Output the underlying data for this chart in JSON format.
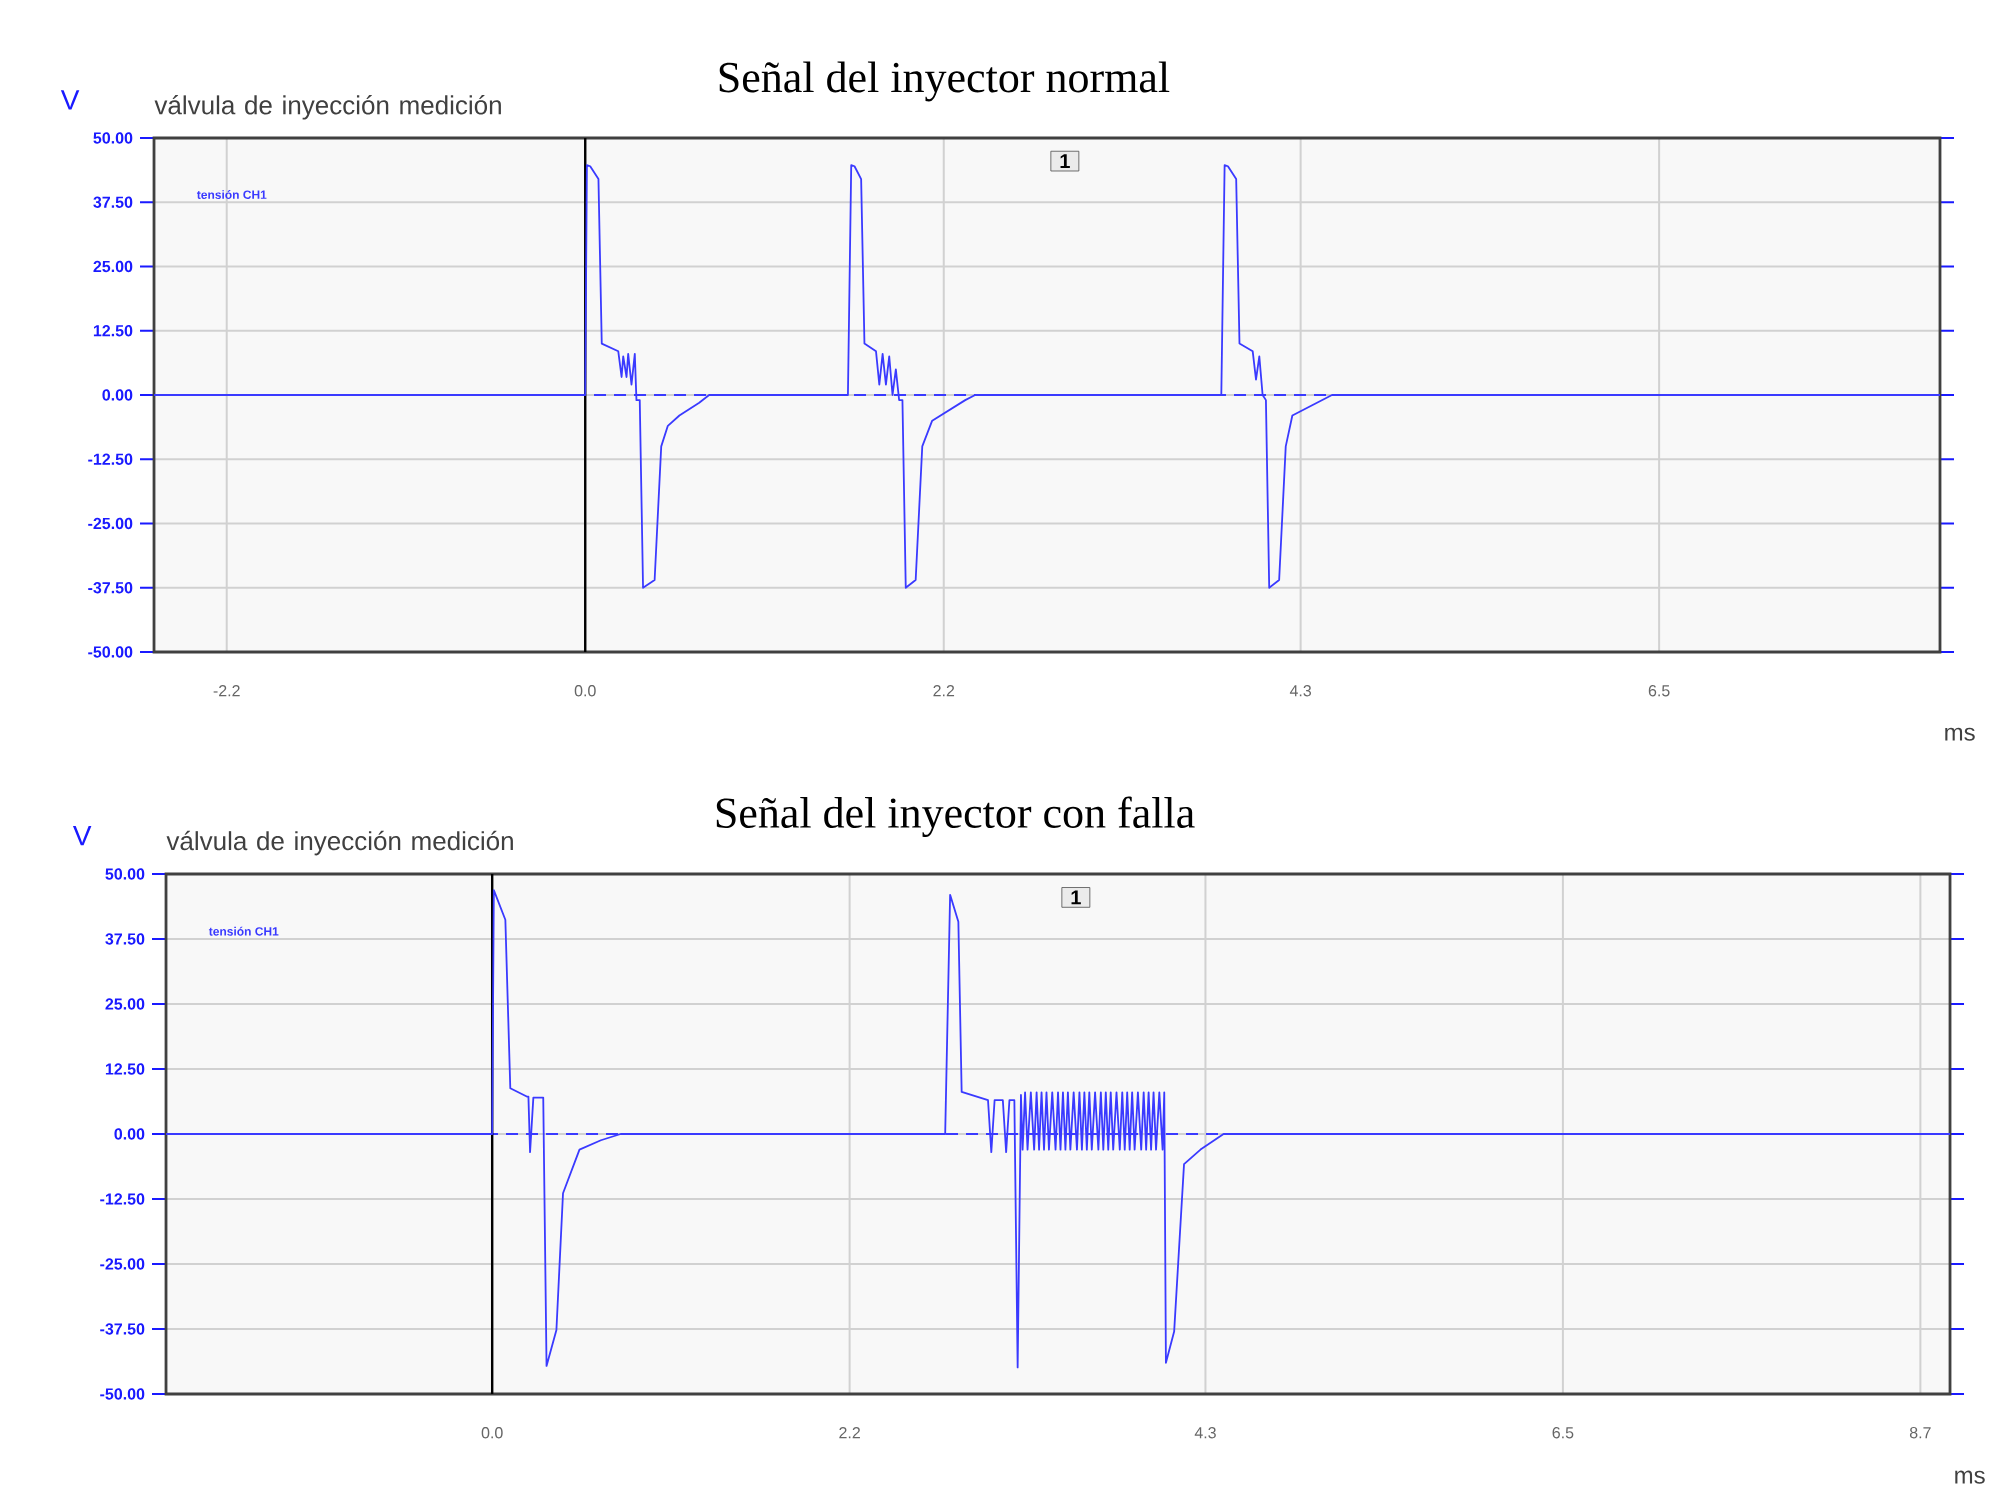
{
  "chart_data": [
    {
      "type": "line",
      "title": "Señal del inyector normal",
      "subtitle": "válvula de inyección medición",
      "xlabel": "ms",
      "ylabel": "V",
      "series": [
        {
          "name": "tensión CH1",
          "color": "#3a3aff",
          "x": [
            -2.61,
            0.0,
            0.01,
            0.03,
            0.08,
            0.1,
            0.2,
            0.22,
            0.23,
            0.25,
            0.26,
            0.28,
            0.3,
            0.31,
            0.33,
            0.35,
            0.42,
            0.46,
            0.5,
            0.57,
            0.69,
            0.75,
            1.59,
            1.61,
            1.63,
            1.67,
            1.69,
            1.76,
            1.78,
            1.8,
            1.82,
            1.84,
            1.86,
            1.88,
            1.9,
            1.92,
            1.94,
            2.0,
            2.04,
            2.1,
            2.2,
            2.3,
            2.36,
            3.85,
            3.87,
            3.89,
            3.94,
            3.96,
            4.04,
            4.06,
            4.08,
            4.1,
            4.12,
            4.14,
            4.2,
            4.24,
            4.28,
            4.4,
            4.52,
            8.2
          ],
          "values": [
            0,
            0,
            44.7,
            44.5,
            42,
            10,
            8.5,
            3.5,
            7.5,
            3.5,
            8,
            2,
            8,
            -1,
            -1,
            -37.5,
            -36,
            -10,
            -6,
            -4,
            -1.5,
            0,
            0,
            44.7,
            44.5,
            42,
            10,
            8.5,
            2,
            8,
            2,
            7.5,
            0,
            5,
            -1,
            -1,
            -37.5,
            -36,
            -10,
            -5,
            -3,
            -1,
            0,
            0,
            44.7,
            44.5,
            42,
            10,
            8.5,
            3,
            7.5,
            0,
            -1,
            -37.5,
            -36,
            -10,
            -4,
            -2,
            0,
            0
          ]
        }
      ],
      "xlim": [
        -2.61,
        8.2
      ],
      "ylim": [
        -50,
        50
      ],
      "xticks": [
        {
          "value": -2.17,
          "label": "-2.2"
        },
        {
          "value": 0,
          "label": "0.0"
        },
        {
          "value": 2.17,
          "label": "2.2"
        },
        {
          "value": 4.33,
          "label": "4.3"
        },
        {
          "value": 6.5,
          "label": "6.5"
        }
      ],
      "yticks": [
        {
          "value": 50,
          "label": "50.00"
        },
        {
          "value": 37.5,
          "label": "37.50"
        },
        {
          "value": 25,
          "label": "25.00"
        },
        {
          "value": 12.5,
          "label": "12.50"
        },
        {
          "value": 0,
          "label": "0.00"
        },
        {
          "value": -12.5,
          "label": "-12.50"
        },
        {
          "value": -25,
          "label": "-25.00"
        },
        {
          "value": -37.5,
          "label": "-37.50"
        },
        {
          "value": -50,
          "label": "-50.00"
        }
      ],
      "grid": true,
      "marker": "none",
      "line_style": "solid",
      "ref_lines": [
        {
          "axis": "y",
          "value": 0,
          "color": "#3a3aff",
          "line_style": "dashed"
        },
        {
          "axis": "x",
          "value": 0,
          "color": "#000000",
          "line_style": "solid"
        }
      ],
      "annotations": [
        "1"
      ]
    },
    {
      "type": "line",
      "title": "Señal del inyector con falla",
      "subtitle": "válvula de inyección medición",
      "xlabel": "ms",
      "ylabel": "V",
      "series": [
        {
          "name": "tensión CH1",
          "color": "#3a3aff",
          "x": [
            -1.98,
            0.0,
            0.01,
            0.08,
            0.11,
            0.21,
            0.22,
            0.23,
            0.25,
            0.31,
            0.33,
            0.39,
            0.43,
            0.53,
            0.66,
            0.78,
            2.75,
            2.78,
            2.83,
            2.85,
            3.01,
            3.03,
            3.05,
            3.1,
            3.12,
            3.14,
            3.17,
            3.19,
            3.21,
            3.22,
            3.235,
            3.25,
            3.27,
            3.29,
            3.305,
            3.32,
            3.335,
            3.35,
            3.365,
            3.38,
            3.4,
            3.42,
            3.435,
            3.45,
            3.465,
            3.48,
            3.495,
            3.51,
            3.53,
            3.55,
            3.565,
            3.58,
            3.595,
            3.61,
            3.625,
            3.64,
            3.66,
            3.68,
            3.695,
            3.71,
            3.725,
            3.74,
            3.755,
            3.77,
            3.79,
            3.81,
            3.825,
            3.84,
            3.855,
            3.87,
            3.885,
            3.9,
            3.92,
            3.94,
            3.955,
            3.97,
            3.985,
            4.0,
            4.015,
            4.03,
            4.05,
            4.07,
            4.08,
            4.09,
            4.14,
            4.2,
            4.3,
            4.44,
            8.85
          ],
          "values": [
            0,
            0,
            46.9,
            41.2,
            8.8,
            7.2,
            7.2,
            -3.5,
            7,
            7,
            -44.6,
            -37.7,
            -11.4,
            -3,
            -1.2,
            0,
            0,
            46,
            40.8,
            8.1,
            6.5,
            -3.5,
            6.5,
            6.5,
            -3.5,
            6.5,
            6.5,
            -44.9,
            7.5,
            -3,
            8,
            -3,
            8,
            -3,
            8,
            -3,
            8,
            -3,
            8,
            -3,
            8,
            -3,
            8,
            -3,
            8,
            -3,
            8,
            -3,
            8,
            -3,
            8,
            -3,
            8,
            -3,
            8,
            -3,
            8,
            -3,
            8,
            -3,
            8,
            -3,
            8,
            -3,
            8,
            -3,
            8,
            -3,
            8,
            -3,
            8,
            -3,
            8,
            -3,
            8,
            -3,
            8,
            -3,
            8,
            -3,
            8,
            -3,
            8,
            -44,
            -38,
            -5.8,
            -3,
            0,
            0
          ]
        }
      ],
      "xlim": [
        -1.98,
        8.85
      ],
      "ylim": [
        -50,
        50
      ],
      "xticks": [
        {
          "value": 0,
          "label": "0.0"
        },
        {
          "value": 2.17,
          "label": "2.2"
        },
        {
          "value": 4.33,
          "label": "4.3"
        },
        {
          "value": 6.5,
          "label": "6.5"
        },
        {
          "value": 8.67,
          "label": "8.7"
        }
      ],
      "yticks": [
        {
          "value": 50,
          "label": "50.00"
        },
        {
          "value": 37.5,
          "label": "37.50"
        },
        {
          "value": 25,
          "label": "25.00"
        },
        {
          "value": 12.5,
          "label": "12.50"
        },
        {
          "value": 0,
          "label": "0.00"
        },
        {
          "value": -12.5,
          "label": "-12.50"
        },
        {
          "value": -25,
          "label": "-25.00"
        },
        {
          "value": -37.5,
          "label": "-37.50"
        },
        {
          "value": -50,
          "label": "-50.00"
        }
      ],
      "grid": true,
      "marker": "none",
      "line_style": "solid",
      "ref_lines": [
        {
          "axis": "y",
          "value": 0,
          "color": "#3a3aff",
          "line_style": "dashed"
        },
        {
          "axis": "x",
          "value": 0,
          "color": "#000000",
          "line_style": "solid"
        }
      ],
      "annotations": [
        "1"
      ]
    }
  ]
}
